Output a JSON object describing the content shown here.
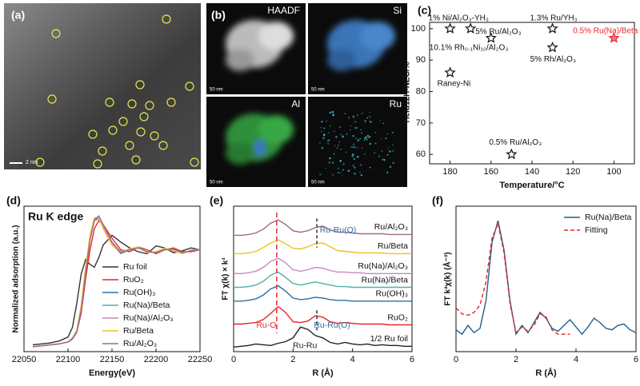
{
  "panels": {
    "a": "(a)",
    "b": "(b)",
    "c": "(c)",
    "d": "(d)",
    "e": "(e)",
    "f": "(f)"
  },
  "images": {
    "a_scale": "2 nm",
    "b_labels": [
      "HAADF",
      "Si",
      "Al",
      "Ru"
    ],
    "b_scale": "50 nm"
  },
  "chart_data": [
    {
      "type": "scatter",
      "xlabel": "Temperature/°C",
      "ylabel": "Yield12H-NEC/%",
      "x": [
        180,
        170,
        160,
        130,
        130,
        100,
        180,
        150
      ],
      "values": [
        100,
        100,
        97,
        100,
        94,
        97,
        86,
        60
      ],
      "labels": [
        "1% Ni/Al₂O₃-YH₃",
        "5% Ru/Al₂O₃",
        "10.1% Rh₀.₁Ni₁₀/Al₂O₃",
        "1.3% Ru/YH₃",
        "5% Rh/Al₂O₃",
        "0.5% Ru(Na)/Beta",
        "Raney-Ni",
        "0.5% Ru/Al₂O₃"
      ],
      "colors": [
        "#111111",
        "#111111",
        "#111111",
        "#111111",
        "#111111",
        "#e8262a",
        "#111111",
        "#111111"
      ],
      "xlim": [
        190,
        90
      ],
      "xticks": [
        180,
        160,
        140,
        120,
        100
      ],
      "ylim": [
        57,
        102
      ],
      "yticks": [
        60,
        70,
        80,
        90,
        100
      ]
    },
    {
      "type": "line",
      "title": "Ru K edge",
      "xlabel": "Energy(eV)",
      "ylabel": "Normalized adsorption (a.u.)",
      "x": [
        22060,
        22070,
        22080,
        22090,
        22100,
        22105,
        22110,
        22115,
        22120,
        22125,
        22130,
        22135,
        22140,
        22150,
        22160,
        22170,
        22180,
        22190,
        22200,
        22210,
        22220,
        22230,
        22240,
        22250
      ],
      "series": [
        {
          "name": "Ru foil",
          "color": "#333333",
          "values": [
            0.02,
            0.03,
            0.04,
            0.06,
            0.1,
            0.2,
            0.45,
            0.75,
            0.9,
            0.85,
            0.82,
            0.92,
            1.05,
            1.15,
            1.08,
            1.02,
            0.98,
            0.96,
            1.04,
            1.02,
            0.97,
            0.99,
            1.02,
            1.0
          ]
        },
        {
          "name": "RuO₂",
          "color": "#e8262a",
          "values": [
            0.0,
            0.01,
            0.02,
            0.03,
            0.05,
            0.08,
            0.15,
            0.35,
            0.7,
            1.0,
            1.22,
            1.3,
            1.26,
            1.12,
            1.0,
            0.98,
            1.03,
            1.0,
            0.96,
            1.0,
            1.02,
            0.98,
            0.98,
            1.0
          ]
        },
        {
          "name": "Ru(OH)₃",
          "color": "#2c6ea3",
          "values": [
            0.0,
            0.01,
            0.02,
            0.03,
            0.05,
            0.08,
            0.15,
            0.4,
            0.78,
            1.12,
            1.3,
            1.33,
            1.25,
            1.08,
            0.97,
            1.0,
            1.02,
            0.98,
            0.97,
            1.01,
            1.0,
            0.97,
            0.99,
            1.0
          ]
        },
        {
          "name": "Ru(Na)/Beta",
          "color": "#4fb3a5",
          "values": [
            0.0,
            0.01,
            0.02,
            0.03,
            0.05,
            0.09,
            0.17,
            0.42,
            0.8,
            1.13,
            1.32,
            1.34,
            1.24,
            1.06,
            0.96,
            1.0,
            1.03,
            0.97,
            0.98,
            1.01,
            0.99,
            0.96,
            1.0,
            1.0
          ]
        },
        {
          "name": "Ru(Na)/Al₂O₃",
          "color": "#c58ac0",
          "values": [
            0.0,
            0.01,
            0.02,
            0.03,
            0.05,
            0.09,
            0.16,
            0.4,
            0.78,
            1.1,
            1.3,
            1.32,
            1.24,
            1.07,
            0.98,
            1.01,
            1.02,
            0.98,
            0.97,
            1.0,
            1.0,
            0.97,
            0.99,
            1.01
          ]
        },
        {
          "name": "Ru/Beta",
          "color": "#f0c020",
          "values": [
            0.0,
            0.01,
            0.02,
            0.03,
            0.05,
            0.08,
            0.16,
            0.42,
            0.82,
            1.15,
            1.33,
            1.33,
            1.22,
            1.05,
            0.97,
            1.01,
            1.03,
            0.97,
            0.98,
            1.02,
            0.99,
            0.96,
            1.0,
            1.0
          ]
        },
        {
          "name": "Ru/Al₂O₃",
          "color": "#9c6c8a",
          "values": [
            0.0,
            0.01,
            0.02,
            0.03,
            0.05,
            0.08,
            0.15,
            0.38,
            0.76,
            1.1,
            1.31,
            1.35,
            1.26,
            1.08,
            0.97,
            1.0,
            1.02,
            0.98,
            0.97,
            1.0,
            1.01,
            0.97,
            0.99,
            1.0
          ]
        }
      ],
      "legend": "center right",
      "xlim": [
        22050,
        22250
      ],
      "xticks": [
        22050,
        22100,
        22150,
        22200,
        22250
      ],
      "ylim": [
        -0.05,
        1.45
      ]
    },
    {
      "type": "line",
      "xlabel": "R (Å)",
      "ylabel": "FT χ(k) × k³",
      "x": [
        0,
        0.25,
        0.5,
        0.75,
        1,
        1.25,
        1.5,
        1.75,
        2,
        2.25,
        2.5,
        2.75,
        3,
        3.25,
        3.5,
        3.75,
        4,
        4.25,
        4.5,
        4.75,
        5,
        5.25,
        5.5,
        5.75,
        6
      ],
      "series": [
        {
          "name": "Ru/Al₂O₃",
          "color": "#9c6c8a",
          "values": [
            7.6,
            7.6,
            7.65,
            7.75,
            8.0,
            8.4,
            8.6,
            8.3,
            7.9,
            7.8,
            7.9,
            8.1,
            8.2,
            7.95,
            7.8,
            7.8,
            7.75,
            7.7,
            7.7,
            7.7,
            7.7,
            7.65,
            7.65,
            7.65,
            7.65
          ]
        },
        {
          "name": "Ru/Beta",
          "color": "#f0c020",
          "values": [
            6.4,
            6.4,
            6.45,
            6.55,
            6.8,
            7.1,
            7.3,
            7.05,
            6.75,
            6.7,
            6.85,
            7.05,
            7.1,
            6.85,
            6.6,
            6.55,
            6.5,
            6.45,
            6.45,
            6.45,
            6.45,
            6.4,
            6.4,
            6.4,
            6.4
          ]
        },
        {
          "name": "Ru(Na)/Al₂O₃",
          "color": "#c58ac0",
          "values": [
            5.1,
            5.1,
            5.15,
            5.25,
            5.5,
            5.9,
            6.1,
            5.8,
            5.35,
            5.25,
            5.35,
            5.5,
            5.45,
            5.3,
            5.2,
            5.2,
            5.15,
            5.15,
            5.1,
            5.1,
            5.1,
            5.1,
            5.1,
            5.1,
            5.1
          ]
        },
        {
          "name": "Ru(Na)/Beta",
          "color": "#4fb3a5",
          "values": [
            4.2,
            4.2,
            4.25,
            4.35,
            4.6,
            5.0,
            5.2,
            4.85,
            4.45,
            4.35,
            4.45,
            4.55,
            4.45,
            4.35,
            4.25,
            4.25,
            4.2,
            4.2,
            4.2,
            4.2,
            4.2,
            4.2,
            4.2,
            4.2,
            4.2
          ]
        },
        {
          "name": "Ru(OH)₃",
          "color": "#2c6ea3",
          "values": [
            3.3,
            3.3,
            3.35,
            3.45,
            3.7,
            4.1,
            4.3,
            3.95,
            3.5,
            3.4,
            3.45,
            3.55,
            3.5,
            3.4,
            3.35,
            3.35,
            3.3,
            3.3,
            3.3,
            3.3,
            3.3,
            3.3,
            3.3,
            3.3,
            3.3
          ]
        },
        {
          "name": "RuO₂",
          "color": "#e8262a",
          "values": [
            1.8,
            1.8,
            1.85,
            1.9,
            2.1,
            2.5,
            2.95,
            2.55,
            1.95,
            1.9,
            2.0,
            2.35,
            2.25,
            1.95,
            1.85,
            1.9,
            1.85,
            1.8,
            1.8,
            1.8,
            1.8,
            1.75,
            1.75,
            1.75,
            1.75
          ]
        },
        {
          "name": "1/2 Ru foil",
          "color": "#222222",
          "values": [
            0.3,
            0.35,
            0.4,
            0.5,
            0.45,
            0.4,
            0.55,
            0.65,
            0.9,
            1.6,
            1.45,
            1.05,
            0.9,
            0.6,
            0.5,
            0.6,
            0.5,
            0.45,
            0.5,
            0.4,
            0.45,
            0.4,
            0.4,
            0.35,
            0.35
          ]
        }
      ],
      "annotations": [
        {
          "text": "Ru-O",
          "color": "#e8262a"
        },
        {
          "text": "Ru-Ru(O)",
          "color": "#2c6ea3"
        },
        {
          "text": "Ru-Ru(O)",
          "color": "#2c6ea3"
        },
        {
          "text": "Ru-Ru",
          "color": "#222222"
        }
      ],
      "xlim": [
        0,
        6
      ],
      "xticks": [
        0,
        2,
        4,
        6
      ],
      "ylim": [
        0,
        9.5
      ]
    },
    {
      "type": "line",
      "xlabel": "R (Å)",
      "ylabel": "FT k³χ(k) (Å⁻³)",
      "x": [
        0,
        0.2,
        0.4,
        0.6,
        0.8,
        1,
        1.2,
        1.4,
        1.6,
        1.8,
        2,
        2.2,
        2.4,
        2.6,
        2.8,
        3,
        3.2,
        3.4,
        3.6,
        3.8,
        4,
        4.2,
        4.4,
        4.6,
        4.8,
        5,
        5.2,
        5.4,
        5.6,
        5.8,
        6
      ],
      "series": [
        {
          "name": "Ru(Na)/Beta",
          "color": "#1f5f8b",
          "values": [
            1.5,
            1.2,
            1.8,
            1.3,
            1.6,
            3.5,
            7.5,
            9.0,
            7.0,
            3.5,
            1.2,
            1.8,
            1.3,
            2.0,
            2.7,
            2.3,
            1.6,
            1.4,
            1.8,
            2.2,
            1.7,
            1.2,
            1.7,
            2.3,
            2.0,
            1.6,
            1.5,
            1.8,
            1.9,
            1.5,
            1.3
          ]
        },
        {
          "name": "Fitting",
          "color": "#e8262a",
          "dash": true,
          "values": [
            3.0,
            2.6,
            2.5,
            2.7,
            3.2,
            4.8,
            7.8,
            8.8,
            6.8,
            3.3,
            1.3,
            1.7,
            1.4,
            1.8,
            2.6,
            2.4,
            1.5,
            1.2,
            1.2,
            1.2,
            null,
            null,
            null,
            null,
            null,
            null,
            null,
            null,
            null,
            null,
            null
          ]
        }
      ],
      "legend": "upper right",
      "xlim": [
        0,
        6
      ],
      "xticks": [
        0,
        2,
        4,
        6
      ],
      "ylim": [
        0,
        10
      ]
    }
  ]
}
